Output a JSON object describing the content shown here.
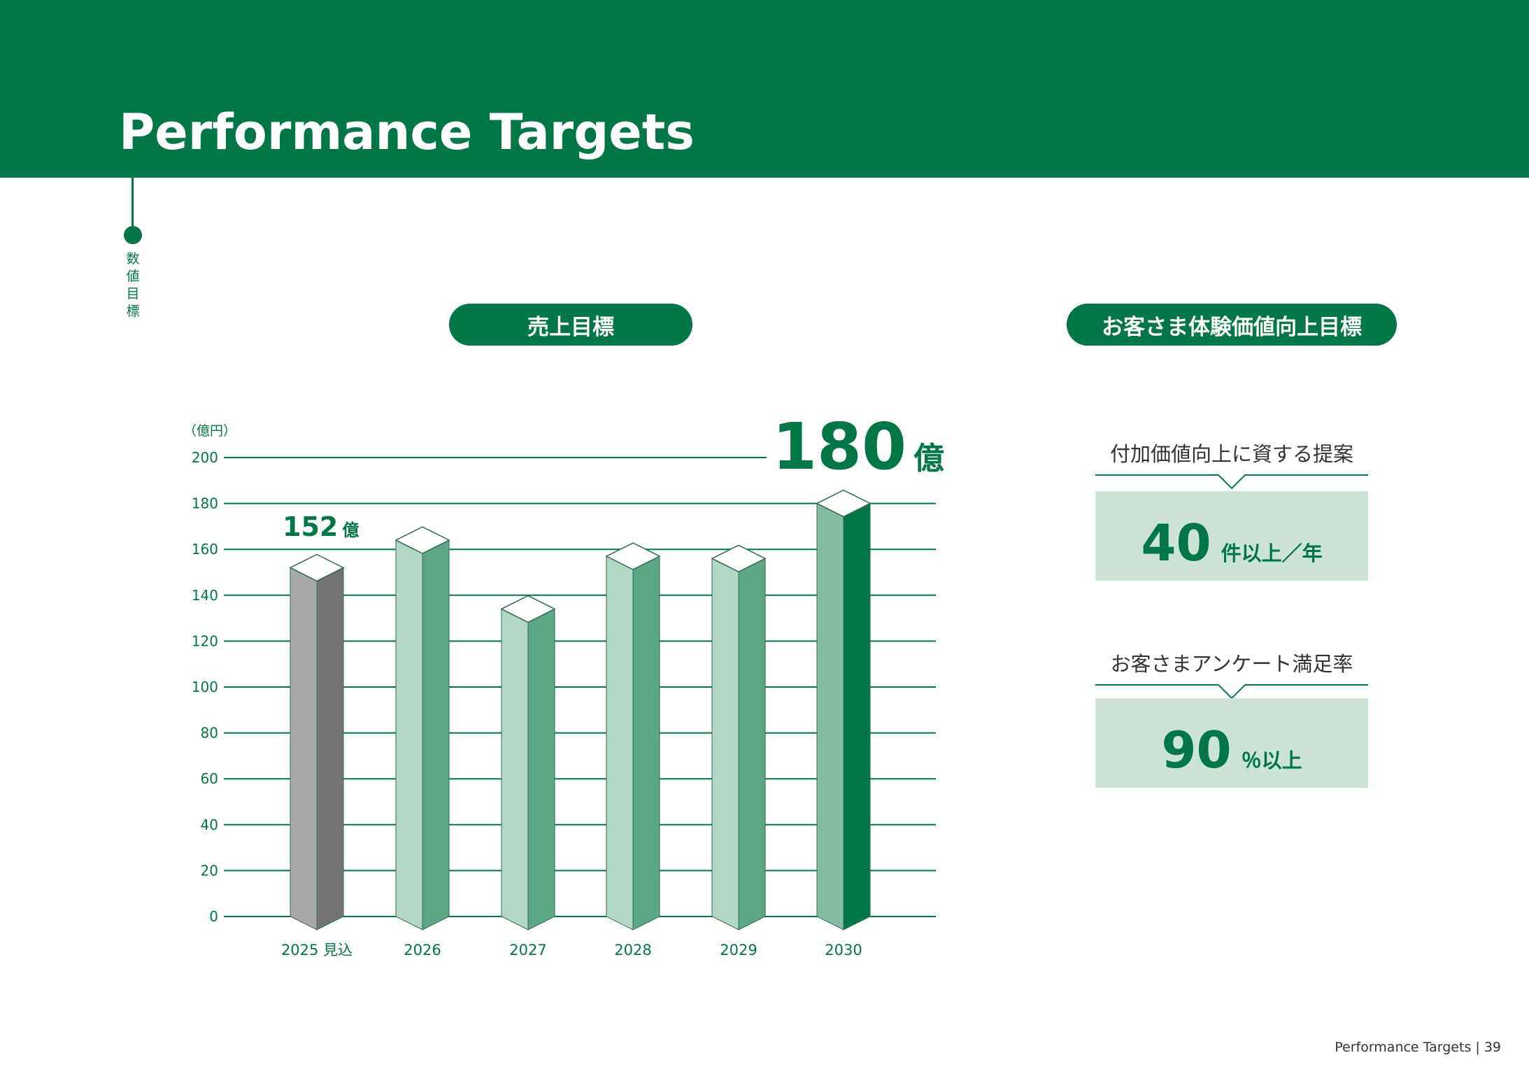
{
  "header": {
    "title": "Performance Targets"
  },
  "side": {
    "label": "数値目標"
  },
  "sections": {
    "sales_title": "売上目標",
    "cx_title": "お客さま体験価値向上目標"
  },
  "colors": {
    "brand_green": "#017646",
    "light_green": "#cce3d8"
  },
  "chart_data": {
    "type": "bar",
    "unit_label": "（億円）",
    "categories": [
      "2025 見込",
      "2026",
      "2027",
      "2028",
      "2029",
      "2030"
    ],
    "values": [
      152,
      164,
      134,
      157,
      156,
      180
    ],
    "ylim": [
      0,
      200
    ],
    "yticks": [
      "0",
      "20",
      "40",
      "60",
      "80",
      "100",
      "120",
      "140",
      "160",
      "180",
      "200"
    ],
    "grid": true,
    "annotations": {
      "start": {
        "number": "152",
        "unit": "億"
      },
      "target": {
        "number": "180",
        "unit": "億"
      }
    }
  },
  "kpis": [
    {
      "label": "付加価値向上に資する提案",
      "number": "40",
      "unit": "件以上／年"
    },
    {
      "label": "お客さまアンケート満足率",
      "number": "90",
      "unit": "％以上"
    }
  ],
  "footer": {
    "text": "Performance Targets | 39"
  }
}
